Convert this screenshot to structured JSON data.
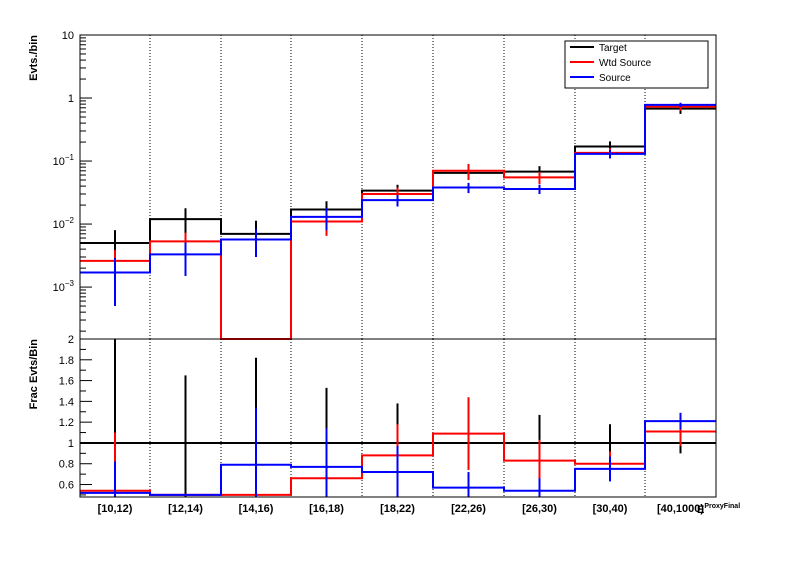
{
  "chart_data": [
    {
      "type": "step",
      "ylabel": "Evts./bin",
      "yscale": "log",
      "ylim": [
        0.00015,
        10
      ],
      "grid": "vertical dotted at bin edges",
      "legend_placement": "top-right",
      "categories": [
        "[10,12)",
        "[12,14)",
        "[14,16)",
        "[16,18)",
        "[18,22)",
        "[22,26)",
        "[26,30)",
        "[30,40)",
        "[40,1000)"
      ],
      "y_tick_labels": [
        {
          "value": 10,
          "label": "10"
        },
        {
          "value": 1,
          "label": "1"
        },
        {
          "value": 0.1,
          "base": "10",
          "exp": "−1"
        },
        {
          "value": 0.01,
          "base": "10",
          "exp": "−2"
        },
        {
          "value": 0.001,
          "base": "10",
          "exp": "−3"
        }
      ],
      "series": [
        {
          "name": "Target",
          "color": "#000000",
          "values": [
            0.005,
            0.012,
            0.007,
            0.017,
            0.034,
            0.065,
            0.068,
            0.17,
            0.68
          ],
          "err_low": [
            0.003,
            0.0066,
            0.004,
            0.006,
            0.008,
            0.015,
            0.015,
            0.04,
            0.12
          ],
          "err_high": [
            0.003,
            0.0058,
            0.0043,
            0.006,
            0.008,
            0.015,
            0.015,
            0.035,
            0.12
          ]
        },
        {
          "name": "Wtd Source",
          "color": "#ff0000",
          "values": [
            0.0026,
            0.0053,
            0.0001,
            0.011,
            0.03,
            0.07,
            0.055,
            0.135,
            0.73
          ],
          "err_low": [
            0.0013,
            0.002,
            0,
            0.0045,
            0.008,
            0.02,
            0.012,
            0.025,
            0.1
          ],
          "err_high": [
            0.0013,
            0.002,
            0,
            0.0045,
            0.008,
            0.02,
            0.012,
            0.025,
            0.1
          ]
        },
        {
          "name": "Source",
          "color": "#0000ff",
          "values": [
            0.0017,
            0.0033,
            0.0057,
            0.013,
            0.024,
            0.038,
            0.036,
            0.13,
            0.78
          ],
          "err_low": [
            0.0012,
            0.0018,
            0.0027,
            0.005,
            0.005,
            0.007,
            0.006,
            0.02,
            0.06
          ],
          "err_high": [
            0.0012,
            0.0018,
            0.0027,
            0.005,
            0.005,
            0.007,
            0.006,
            0.02,
            0.06
          ]
        }
      ]
    },
    {
      "type": "step",
      "ylabel": "Frac Evts/Bin",
      "yscale": "linear",
      "ylim": [
        0.48,
        2.0
      ],
      "y_ticks": [
        0.6,
        0.8,
        1,
        1.2,
        1.4,
        1.6,
        1.8,
        2
      ],
      "y_tick_labels": [
        "0.6",
        "0.8",
        "1",
        "1.2",
        "1.4",
        "1.6",
        "1.8",
        "2"
      ],
      "xlabel": "E",
      "xlabel_sub": "ProxyFinal",
      "reference_line": 1,
      "categories": [
        "[10,12)",
        "[12,14)",
        "[14,16)",
        "[16,18)",
        "[18,22)",
        "[22,26)",
        "[26,30)",
        "[30,40)",
        "[40,1000)"
      ],
      "series": [
        {
          "name": "Target",
          "color": "#000000",
          "values": [
            1,
            1,
            1,
            1,
            1,
            1,
            1,
            1,
            1
          ],
          "err_low": [
            0.6,
            0.75,
            0.7,
            0.5,
            0.35,
            0.23,
            0.24,
            0.23,
            0.1
          ],
          "err_high": [
            1.2,
            0.65,
            0.82,
            0.53,
            0.38,
            0.23,
            0.27,
            0.18,
            0.1
          ]
        },
        {
          "name": "Wtd Source",
          "color": "#ff0000",
          "values": [
            0.54,
            0.5,
            0.5,
            0.66,
            0.88,
            1.09,
            0.83,
            0.8,
            1.11
          ],
          "err_low": [
            0.5,
            0,
            0,
            0.2,
            0.3,
            0.35,
            0.2,
            0.12,
            0.14
          ],
          "err_high": [
            0.56,
            0,
            0,
            0.2,
            0.3,
            0.35,
            0.2,
            0.12,
            0.14
          ]
        },
        {
          "name": "Source",
          "color": "#0000ff",
          "values": [
            0.52,
            0.5,
            0.79,
            0.77,
            0.72,
            0.57,
            0.54,
            0.75,
            1.21
          ],
          "err_low": [
            0.3,
            0,
            0.55,
            0.37,
            0.25,
            0.15,
            0.12,
            0.12,
            0.08
          ],
          "err_high": [
            0.3,
            0,
            0.55,
            0.37,
            0.25,
            0.15,
            0.12,
            0.12,
            0.08
          ]
        }
      ]
    }
  ]
}
